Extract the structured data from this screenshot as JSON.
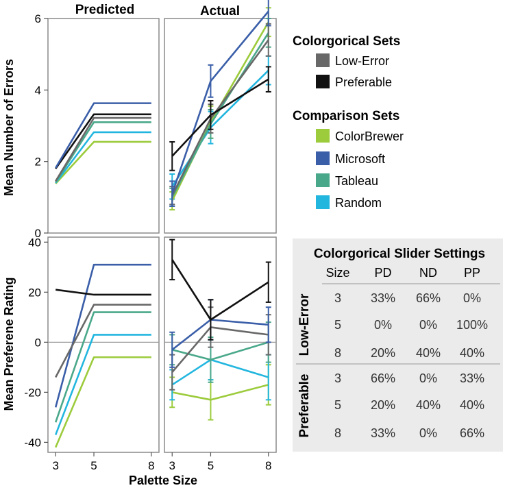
{
  "colors": {
    "low_error": "#686868",
    "preferable": "#111111",
    "colorbrewer": "#9ccb3c",
    "microsoft": "#3a5ea8",
    "tableau": "#4aa88a",
    "random": "#22b6df"
  },
  "chart_data": [
    {
      "id": "errors-predicted",
      "type": "line",
      "title": "Predicted",
      "ylabel": "Mean Number of Errors",
      "x": [
        3,
        5,
        8
      ],
      "xlim": [
        2.6,
        8.4
      ],
      "ylim": [
        0,
        6.0
      ],
      "yticks": [
        0,
        2,
        4,
        6
      ],
      "series": [
        {
          "name": "ColorBrewer",
          "color_key": "colorbrewer",
          "values": [
            1.38,
            2.55,
            2.55
          ]
        },
        {
          "name": "Random",
          "color_key": "random",
          "values": [
            1.4,
            2.82,
            2.82
          ]
        },
        {
          "name": "Tableau",
          "color_key": "tableau",
          "values": [
            1.42,
            3.1,
            3.1
          ]
        },
        {
          "name": "Low-Error",
          "color_key": "low_error",
          "values": [
            1.45,
            3.22,
            3.22
          ]
        },
        {
          "name": "Preferable",
          "color_key": "preferable",
          "values": [
            1.8,
            3.32,
            3.32
          ]
        },
        {
          "name": "Microsoft",
          "color_key": "microsoft",
          "values": [
            1.82,
            3.63,
            3.63
          ]
        }
      ]
    },
    {
      "id": "errors-actual",
      "type": "line",
      "title": "Actual",
      "x": [
        3,
        5,
        8
      ],
      "xlim": [
        2.6,
        8.4
      ],
      "ylim": [
        0,
        6.0
      ],
      "yticks": [
        0,
        2,
        4,
        6
      ],
      "series": [
        {
          "name": "Random",
          "color_key": "random",
          "values": [
            1.3,
            2.95,
            4.55
          ],
          "err": [
            0.35,
            0.45,
            0.4
          ]
        },
        {
          "name": "ColorBrewer",
          "color_key": "colorbrewer",
          "values": [
            0.9,
            3.1,
            5.9
          ],
          "err": [
            0.25,
            0.45,
            0.4
          ]
        },
        {
          "name": "Tableau",
          "color_key": "tableau",
          "values": [
            1.0,
            3.05,
            5.6
          ],
          "err": [
            0.25,
            0.4,
            0.4
          ]
        },
        {
          "name": "Low-Error",
          "color_key": "low_error",
          "values": [
            1.05,
            3.2,
            5.4
          ],
          "err": [
            0.25,
            0.4,
            0.45
          ]
        },
        {
          "name": "Microsoft",
          "color_key": "microsoft",
          "values": [
            1.1,
            4.25,
            6.2
          ],
          "err": [
            0.35,
            0.45,
            0.4
          ]
        },
        {
          "name": "Preferable",
          "color_key": "preferable",
          "values": [
            2.15,
            3.3,
            4.3
          ],
          "err": [
            0.4,
            0.4,
            0.35
          ]
        }
      ]
    },
    {
      "id": "preference-predicted",
      "type": "line",
      "ylabel": "Mean Preferene Rating",
      "xlabel": "Palette Size",
      "x": [
        3,
        5,
        8
      ],
      "xticks": [
        3,
        5,
        8
      ],
      "xlim": [
        2.6,
        8.4
      ],
      "ylim": [
        -44,
        42
      ],
      "yticks": [
        -40,
        -20,
        0,
        20,
        40
      ],
      "series": [
        {
          "name": "ColorBrewer",
          "color_key": "colorbrewer",
          "values": [
            -42,
            -6,
            -6
          ]
        },
        {
          "name": "Random",
          "color_key": "random",
          "values": [
            -37,
            3,
            3
          ]
        },
        {
          "name": "Tableau",
          "color_key": "tableau",
          "values": [
            -32,
            12,
            12
          ]
        },
        {
          "name": "Microsoft",
          "color_key": "microsoft",
          "values": [
            -26,
            31,
            31
          ]
        },
        {
          "name": "Low-Error",
          "color_key": "low_error",
          "values": [
            -14,
            15,
            15
          ]
        },
        {
          "name": "Preferable",
          "color_key": "preferable",
          "values": [
            21,
            19,
            19
          ]
        }
      ]
    },
    {
      "id": "preference-actual",
      "type": "line",
      "x": [
        3,
        5,
        8
      ],
      "xticks": [
        3,
        5,
        8
      ],
      "xlim": [
        2.6,
        8.4
      ],
      "ylim": [
        -44,
        42
      ],
      "yticks": [
        -40,
        -20,
        0,
        20,
        40
      ],
      "series": [
        {
          "name": "ColorBrewer",
          "color_key": "colorbrewer",
          "values": [
            -20,
            -23,
            -17
          ],
          "err": [
            6,
            8,
            8
          ]
        },
        {
          "name": "Random",
          "color_key": "random",
          "values": [
            -17,
            -7,
            -14
          ],
          "err": [
            6,
            8,
            9
          ]
        },
        {
          "name": "Tableau",
          "color_key": "tableau",
          "values": [
            -3,
            -7,
            0
          ],
          "err": [
            6,
            9,
            8
          ]
        },
        {
          "name": "Low-Error",
          "color_key": "low_error",
          "values": [
            -12,
            6,
            3
          ],
          "err": [
            7,
            8,
            8
          ]
        },
        {
          "name": "Microsoft",
          "color_key": "microsoft",
          "values": [
            -3,
            9,
            7
          ],
          "err": [
            7,
            8,
            7
          ]
        },
        {
          "name": "Preferable",
          "color_key": "preferable",
          "values": [
            33,
            9,
            24
          ],
          "err": [
            8,
            8,
            8
          ]
        }
      ]
    }
  ],
  "legend": {
    "groups": [
      {
        "title": "Colorgorical Sets",
        "entries": [
          {
            "label": "Low-Error",
            "color_key": "low_error"
          },
          {
            "label": "Preferable",
            "color_key": "preferable"
          }
        ]
      },
      {
        "title": "Comparison Sets",
        "entries": [
          {
            "label": "ColorBrewer",
            "color_key": "colorbrewer"
          },
          {
            "label": "Microsoft",
            "color_key": "microsoft"
          },
          {
            "label": "Tableau",
            "color_key": "tableau"
          },
          {
            "label": "Random",
            "color_key": "random"
          }
        ]
      }
    ]
  },
  "settings_table": {
    "title": "Colorgorical Slider Settings",
    "columns": [
      "Size",
      "PD",
      "ND",
      "PP"
    ],
    "groups": [
      {
        "label": "Low-Error",
        "rows": [
          [
            "3",
            "33%",
            "66%",
            "0%"
          ],
          [
            "5",
            "0%",
            "0%",
            "100%"
          ],
          [
            "8",
            "20%",
            "40%",
            "40%"
          ]
        ]
      },
      {
        "label": "Preferable",
        "rows": [
          [
            "3",
            "66%",
            "0%",
            "33%"
          ],
          [
            "5",
            "20%",
            "40%",
            "40%"
          ],
          [
            "8",
            "33%",
            "0%",
            "66%"
          ]
        ]
      }
    ]
  }
}
